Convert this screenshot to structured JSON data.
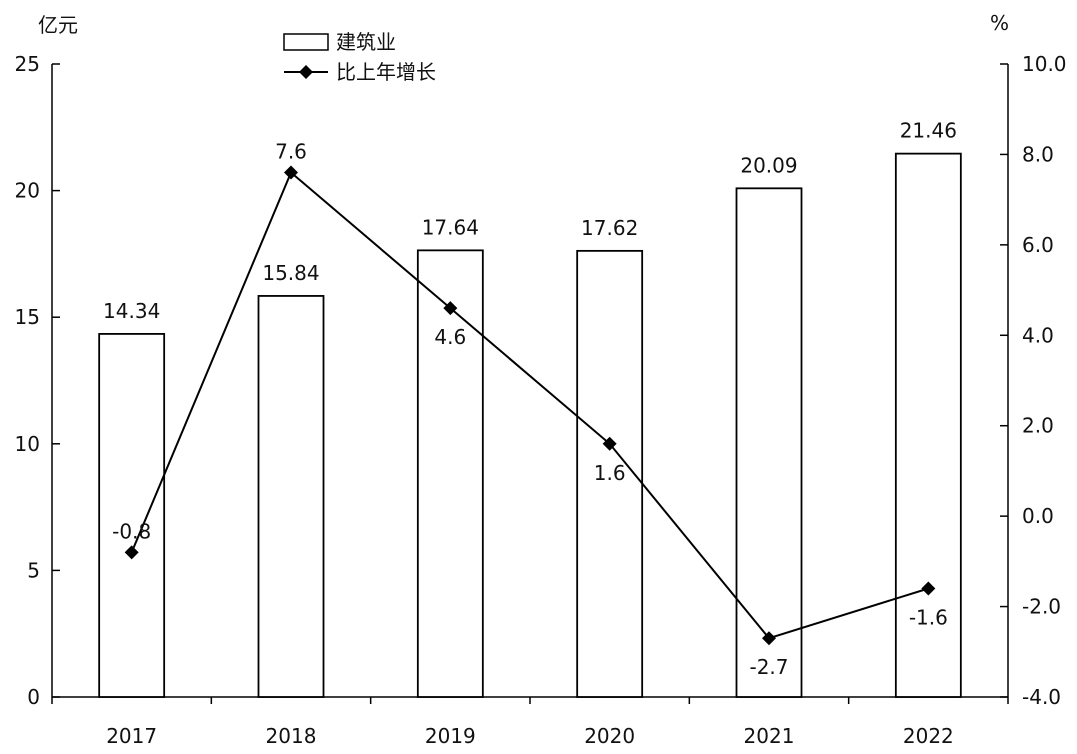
{
  "chart_data": {
    "type": "bar",
    "categories": [
      "2017",
      "2018",
      "2019",
      "2020",
      "2021",
      "2022"
    ],
    "series": [
      {
        "name": "建筑业",
        "type": "bar",
        "axis": "left",
        "values": [
          14.34,
          15.84,
          17.64,
          17.62,
          20.09,
          21.46
        ],
        "labels": [
          "14.34",
          "15.84",
          "17.64",
          "17.62",
          "20.09",
          "21.46"
        ]
      },
      {
        "name": "比上年增长",
        "type": "line",
        "axis": "right",
        "marker": "diamond",
        "values": [
          -0.8,
          7.6,
          4.6,
          1.6,
          -2.7,
          -1.6
        ],
        "labels": [
          "-0.8",
          "7.6",
          "4.6",
          "1.6",
          "-2.7",
          "-1.6"
        ]
      }
    ],
    "y_left": {
      "unit": "亿元",
      "lim": [
        0,
        25
      ],
      "ticks": [
        "0",
        "5",
        "10",
        "15",
        "20",
        "25"
      ]
    },
    "y_right": {
      "unit": "%",
      "lim": [
        -4,
        10
      ],
      "ticks": [
        "-4.0",
        "-2.0",
        "0.0",
        "2.0",
        "4.0",
        "6.0",
        "8.0",
        "10.0"
      ]
    },
    "legend_position": "top-left",
    "grid": false,
    "colors": {
      "bar_fill": "#ffffff",
      "bar_stroke": "#000000",
      "line": "#000000"
    }
  }
}
